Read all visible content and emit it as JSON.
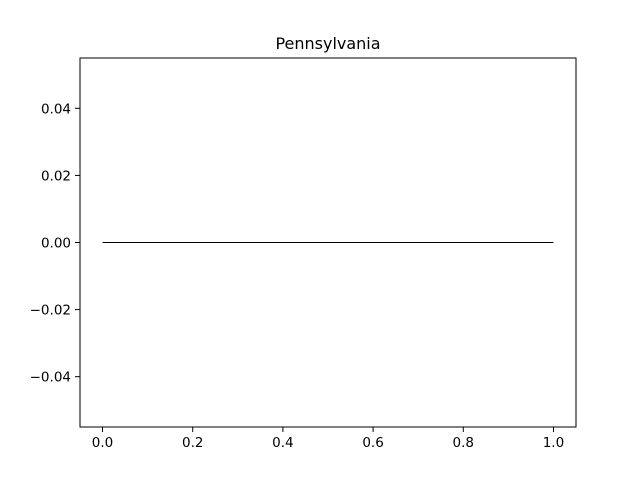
{
  "chart_data": {
    "type": "line",
    "title": "Pennsylvania",
    "xlabel": "",
    "ylabel": "",
    "xlim": [
      -0.05,
      1.05
    ],
    "ylim": [
      -0.055,
      0.055
    ],
    "x_ticks": [
      0.0,
      0.2,
      0.4,
      0.6,
      0.8,
      1.0
    ],
    "x_tick_labels": [
      "0.0",
      "0.2",
      "0.4",
      "0.6",
      "0.8",
      "1.0"
    ],
    "y_ticks": [
      0.04,
      0.02,
      0.0,
      -0.02,
      -0.04
    ],
    "y_tick_labels": [
      "0.04",
      "0.02",
      "0.00",
      "−0.02",
      "−0.04"
    ],
    "grid": false,
    "series": [
      {
        "x": [
          0.0,
          1.0
        ],
        "y": [
          0.0,
          0.0
        ],
        "color": "#000000"
      }
    ]
  }
}
